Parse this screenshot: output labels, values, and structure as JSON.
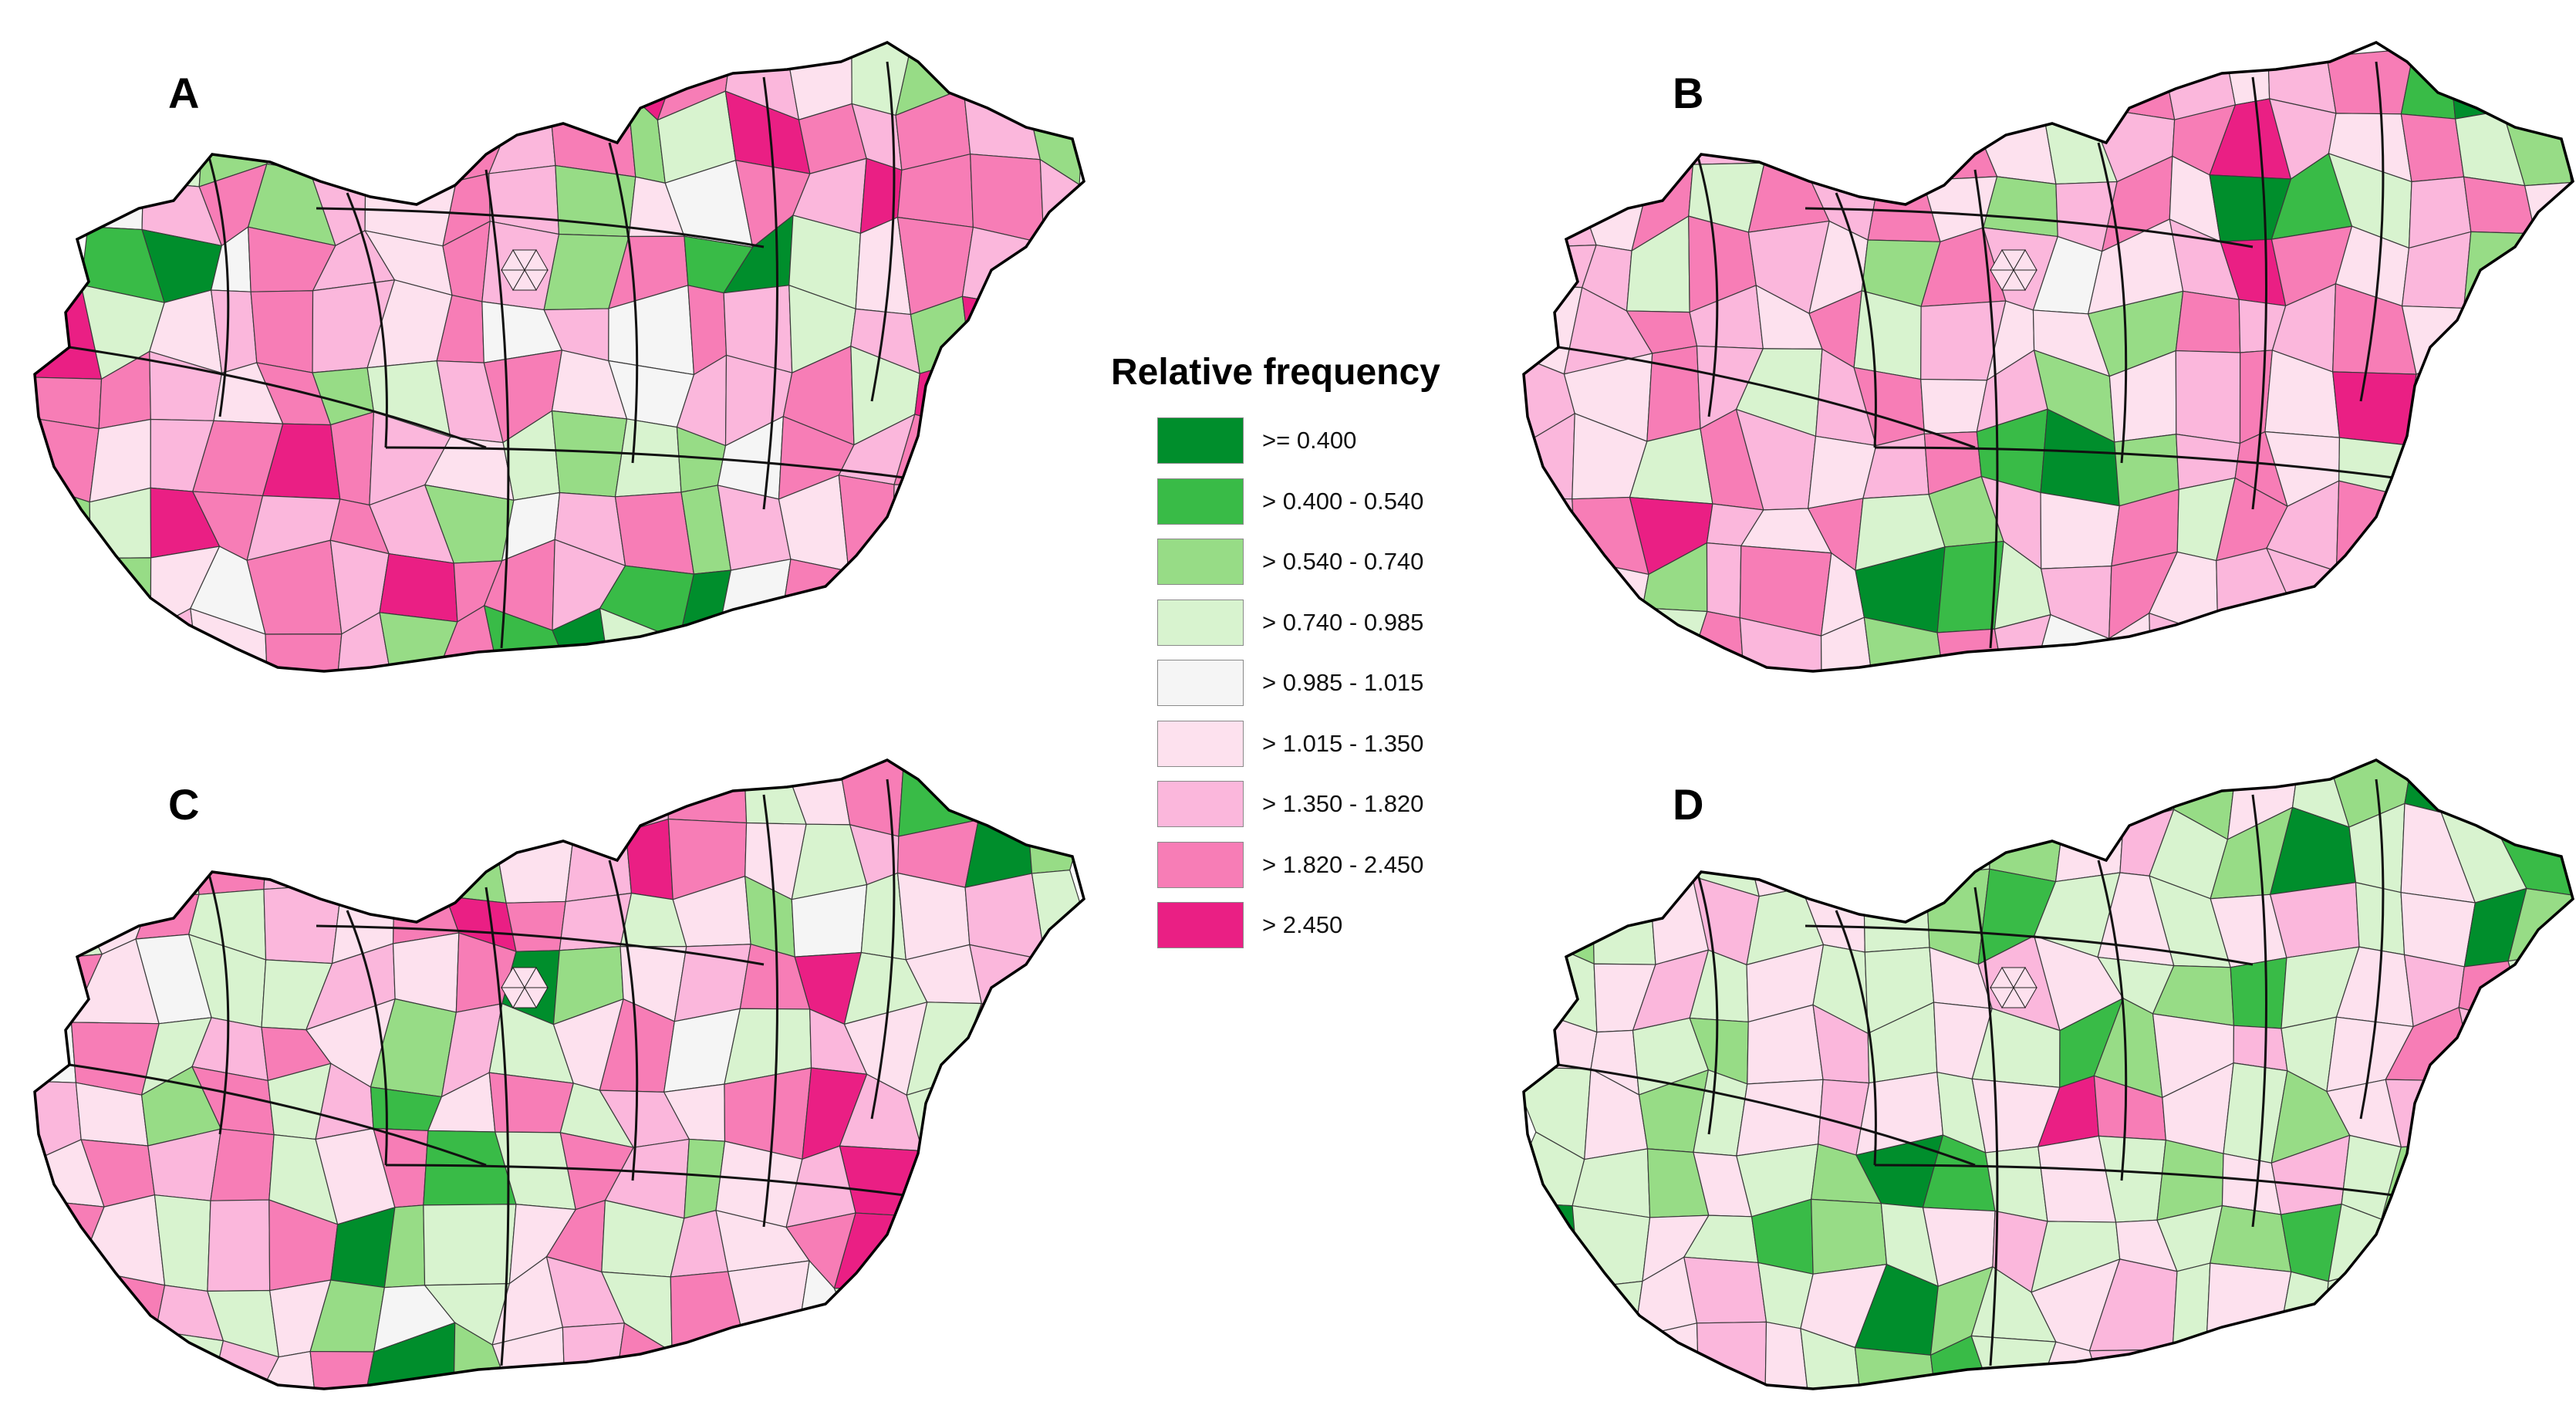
{
  "panels": [
    {
      "label": "A",
      "pattern": [
        8,
        7,
        6,
        5,
        3,
        2,
        3,
        2,
        4,
        7,
        6,
        7,
        2,
        3,
        8,
        7,
        6,
        7,
        6,
        2,
        4,
        6,
        7,
        2,
        6,
        5,
        7,
        6,
        2,
        5,
        4,
        7,
        6,
        8,
        7,
        7,
        6,
        1,
        0,
        4,
        7,
        6,
        5,
        7,
        6,
        2,
        7,
        1,
        0,
        3,
        5,
        7,
        6,
        8,
        3,
        5,
        6,
        7,
        6,
        5,
        7,
        4,
        6,
        4,
        7,
        6,
        3,
        6,
        2,
        8,
        7,
        7,
        6,
        5,
        7,
        2,
        3,
        6,
        7,
        5,
        4,
        6,
        6,
        7,
        3,
        8,
        7,
        5,
        6,
        7
      ]
    },
    {
      "label": "B",
      "pattern": [
        7,
        6,
        5,
        6,
        7,
        1,
        0,
        2,
        6,
        7,
        5,
        3,
        6,
        7,
        8,
        6,
        5,
        7,
        3,
        2,
        6,
        5,
        7,
        3,
        7,
        6,
        7,
        5,
        2,
        6,
        7,
        5,
        0,
        1,
        3,
        6,
        7,
        5,
        6,
        6,
        3,
        7,
        6,
        5,
        2,
        7,
        6,
        4,
        5,
        6,
        8,
        7,
        5,
        6,
        2,
        5,
        6,
        7,
        6,
        5,
        7,
        3,
        6,
        5,
        5,
        2,
        7,
        6,
        6,
        7,
        5,
        6,
        5,
        7,
        6,
        3,
        6,
        7,
        5,
        6,
        2,
        5,
        6,
        7,
        5,
        8,
        7,
        6,
        5,
        3
      ]
    },
    {
      "label": "C",
      "pattern": [
        6,
        7,
        3,
        5,
        7,
        1,
        3,
        7,
        6,
        2,
        5,
        6,
        8,
        7,
        5,
        3,
        6,
        7,
        0,
        2,
        3,
        5,
        7,
        3,
        6,
        5,
        7,
        8,
        7,
        6,
        3,
        5,
        2,
        4,
        3,
        5,
        6,
        3,
        7,
        5,
        4,
        3,
        3,
        6,
        5,
        7,
        0,
        2,
        5,
        6,
        7,
        8,
        3,
        5,
        6,
        4,
        7,
        3,
        6,
        7,
        5,
        2,
        6,
        3,
        5,
        7,
        4,
        3,
        6,
        5,
        3,
        7,
        6,
        5,
        2,
        7,
        3,
        6,
        1,
        5,
        7,
        3,
        6,
        5,
        7,
        8,
        6,
        3,
        5,
        7
      ]
    },
    {
      "label": "D",
      "pattern": [
        3,
        2,
        5,
        3,
        2,
        0,
        1,
        3,
        5,
        3,
        2,
        5,
        6,
        3,
        2,
        0,
        3,
        5,
        3,
        1,
        2,
        3,
        5,
        6,
        3,
        5,
        3,
        2,
        1,
        3,
        5,
        3,
        5,
        6,
        3,
        5,
        0,
        2,
        3,
        5,
        6,
        3,
        5,
        3,
        3,
        5,
        6,
        5,
        3,
        2,
        1,
        3,
        5,
        6,
        7,
        3,
        5,
        5,
        3,
        2,
        5,
        6,
        3,
        5,
        3,
        1,
        2,
        5,
        6,
        3,
        5,
        7,
        6,
        3,
        5,
        2,
        3,
        5,
        6,
        5,
        3,
        5,
        8,
        7,
        5,
        3,
        2,
        5,
        6,
        3
      ]
    }
  ],
  "legend": {
    "title": "Relative frequency",
    "items": [
      {
        "label": ">= 0.400",
        "color": "#008e2c"
      },
      {
        "label": "> 0.400 - 0.540",
        "color": "#39bb47"
      },
      {
        "label": "> 0.540 - 0.740",
        "color": "#97dc86"
      },
      {
        "label": "> 0.740 - 0.985",
        "color": "#d8f3cf"
      },
      {
        "label": "> 0.985 - 1.015",
        "color": "#f5f5f5"
      },
      {
        "label": "> 1.015 - 1.350",
        "color": "#fde1ee"
      },
      {
        "label": "> 1.350 - 1.820",
        "color": "#fbb7dc"
      },
      {
        "label": "> 1.820 - 2.450",
        "color": "#f77db6"
      },
      {
        "label": "> 2.450",
        "color": "#ea1f84"
      }
    ]
  }
}
